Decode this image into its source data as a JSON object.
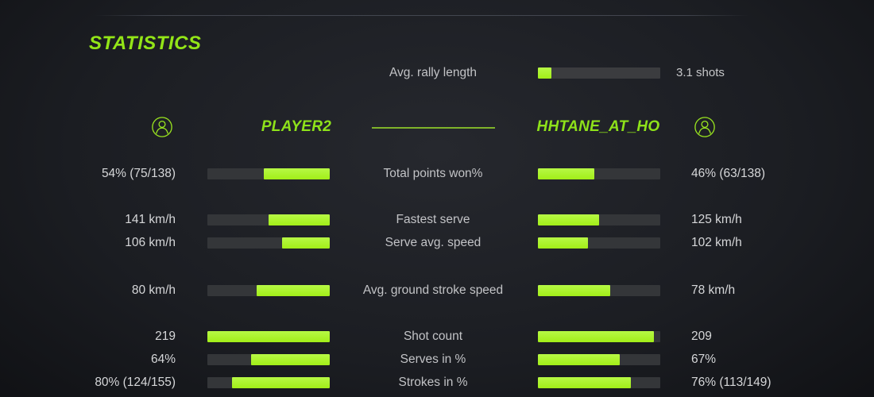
{
  "title": "STATISTICS",
  "colors": {
    "accent_green": "#a2ee18",
    "text_green": "#8ee21a",
    "bar_track": "#343639",
    "label_gray": "#c2c3c6",
    "value_gray": "#d6d7d9",
    "background": "#1b1d22"
  },
  "rally": {
    "label": "Avg. rally length",
    "value": "3.1 shots",
    "fill": 11
  },
  "players": {
    "left": {
      "name": "PLAYER2"
    },
    "right": {
      "name": "HHTANE_AT_HO"
    }
  },
  "chart_data": {
    "type": "bar",
    "title": "STATISTICS",
    "legend_entries": [
      "PLAYER2",
      "HHTANE_AT_HO"
    ],
    "categories": [
      "Total points won%",
      "Fastest serve",
      "Serve avg. speed",
      "Avg. ground stroke speed",
      "Shot count",
      "Serves in %",
      "Strokes in %"
    ],
    "series": [
      {
        "name": "PLAYER2",
        "values": [
          "54% (75/138)",
          "141 km/h",
          "106 km/h",
          "80 km/h",
          "219",
          "64%",
          "80% (124/155)"
        ]
      },
      {
        "name": "HHTANE_AT_HO",
        "values": [
          "46% (63/138)",
          "125 km/h",
          "102 km/h",
          "78 km/h",
          "209",
          "67%",
          "76% (113/149)"
        ]
      }
    ]
  },
  "stats": {
    "rows": [
      {
        "label": "Total points won%",
        "left": {
          "value": "54% (75/138)",
          "fill": 54
        },
        "right": {
          "value": "46% (63/138)",
          "fill": 46
        }
      },
      {
        "label": "Fastest serve",
        "left": {
          "value": "141 km/h",
          "fill": 50
        },
        "right": {
          "value": "125 km/h",
          "fill": 50
        }
      },
      {
        "label": "Serve avg. speed",
        "left": {
          "value": "106 km/h",
          "fill": 39
        },
        "right": {
          "value": "102 km/h",
          "fill": 41
        }
      },
      {
        "label": "Avg. ground stroke speed",
        "left": {
          "value": "80 km/h",
          "fill": 60
        },
        "right": {
          "value": "78 km/h",
          "fill": 59
        }
      },
      {
        "label": "Shot count",
        "left": {
          "value": "219",
          "fill": 100
        },
        "right": {
          "value": "209",
          "fill": 95
        }
      },
      {
        "label": "Serves in %",
        "left": {
          "value": "64%",
          "fill": 64
        },
        "right": {
          "value": "67%",
          "fill": 67
        }
      },
      {
        "label": "Strokes in %",
        "left": {
          "value": "80% (124/155)",
          "fill": 80
        },
        "right": {
          "value": "76% (113/149)",
          "fill": 76
        }
      }
    ]
  }
}
